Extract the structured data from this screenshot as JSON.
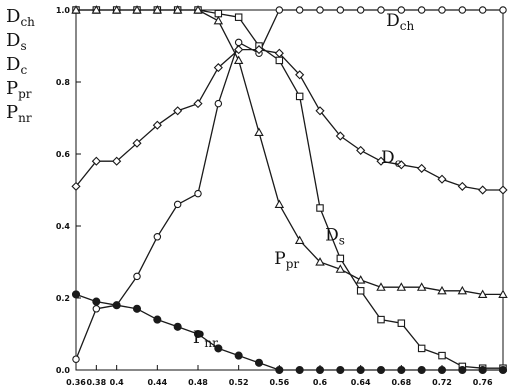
{
  "chart_data": {
    "type": "line",
    "title": "",
    "xlabel": "",
    "ylabel": "",
    "ylabel_stack": [
      {
        "main": "D",
        "sub": "ch"
      },
      {
        "main": "D",
        "sub": "s"
      },
      {
        "main": "D",
        "sub": "c"
      },
      {
        "main": "P",
        "sub": "pr"
      },
      {
        "main": "P",
        "sub": "nr"
      }
    ],
    "xlim": [
      0.36,
      0.78
    ],
    "ylim": [
      0.0,
      1.0
    ],
    "grid": false,
    "x_ticks": [
      "0.36",
      "0.38",
      "0.4",
      "0.44",
      "0.48",
      "0.52",
      "0.56",
      "0.6",
      "0.64",
      "0.68",
      "0.72",
      "0.76"
    ],
    "x_tick_values": [
      0.36,
      0.38,
      0.4,
      0.44,
      0.48,
      0.52,
      0.56,
      0.6,
      0.64,
      0.68,
      0.72,
      0.76
    ],
    "y_ticks": [
      "0.0",
      "0.2",
      "0.4",
      "0.6",
      "0.8",
      "1.0"
    ],
    "y_tick_values": [
      0.0,
      0.2,
      0.4,
      0.6,
      0.8,
      1.0
    ],
    "x": [
      0.36,
      0.38,
      0.4,
      0.42,
      0.44,
      0.46,
      0.48,
      0.5,
      0.52,
      0.54,
      0.56,
      0.58,
      0.6,
      0.62,
      0.64,
      0.66,
      0.68,
      0.7,
      0.72,
      0.74,
      0.76,
      0.78
    ],
    "series": [
      {
        "name": "Dch",
        "label_main": "D",
        "label_sub": "ch",
        "marker": "circle-open",
        "values": [
          0.03,
          0.17,
          0.18,
          0.26,
          0.37,
          0.46,
          0.49,
          0.74,
          0.91,
          0.88,
          1.0,
          1.0,
          1.0,
          1.0,
          1.0,
          1.0,
          1.0,
          1.0,
          1.0,
          1.0,
          1.0,
          1.0
        ]
      },
      {
        "name": "Ds",
        "label_main": "D",
        "label_sub": "s",
        "marker": "square-open",
        "values": [
          1.0,
          1.0,
          1.0,
          1.0,
          1.0,
          1.0,
          1.0,
          0.99,
          0.98,
          0.9,
          0.86,
          0.76,
          0.45,
          0.31,
          0.22,
          0.14,
          0.13,
          0.06,
          0.04,
          0.01,
          0.005,
          0.005
        ]
      },
      {
        "name": "Dc",
        "label_main": "D",
        "label_sub": "c",
        "marker": "diamond-open",
        "values": [
          0.51,
          0.58,
          0.58,
          0.63,
          0.68,
          0.72,
          0.74,
          0.84,
          0.89,
          0.89,
          0.88,
          0.82,
          0.72,
          0.65,
          0.61,
          0.58,
          0.57,
          0.56,
          0.53,
          0.51,
          0.5,
          0.5
        ]
      },
      {
        "name": "Ppr",
        "label_main": "P",
        "label_sub": "pr",
        "marker": "triangle-open",
        "values": [
          1.0,
          1.0,
          1.0,
          1.0,
          1.0,
          1.0,
          1.0,
          0.97,
          0.86,
          0.66,
          0.46,
          0.36,
          0.3,
          0.28,
          0.25,
          0.23,
          0.23,
          0.23,
          0.22,
          0.22,
          0.21,
          0.21
        ]
      },
      {
        "name": "Pnr",
        "label_main": "P",
        "label_sub": "nr",
        "marker": "circle-filled",
        "values": [
          0.21,
          0.19,
          0.18,
          0.17,
          0.14,
          0.12,
          0.1,
          0.06,
          0.04,
          0.02,
          0.0,
          0.0,
          0.0,
          0.0,
          0.0,
          0.0,
          0.0,
          0.0,
          0.0,
          0.0,
          0.0,
          0.0
        ]
      }
    ],
    "annotations": [
      {
        "series": "Dch",
        "main": "D",
        "sub": "ch",
        "x": 0.665,
        "y": 0.955
      },
      {
        "series": "Dc",
        "main": "D",
        "sub": "c",
        "x": 0.66,
        "y": 0.575
      },
      {
        "series": "Ds",
        "main": "D",
        "sub": "s",
        "x": 0.605,
        "y": 0.36
      },
      {
        "series": "Ppr",
        "main": "P",
        "sub": "pr",
        "x": 0.555,
        "y": 0.295
      },
      {
        "series": "Pnr",
        "main": "P",
        "sub": "nr",
        "x": 0.475,
        "y": 0.075
      }
    ],
    "colors": {
      "line": "#1a1a1a",
      "marker_fill_open": "#ffffff",
      "marker_fill_filled": "#1a1a1a",
      "axis": "#111111"
    }
  }
}
